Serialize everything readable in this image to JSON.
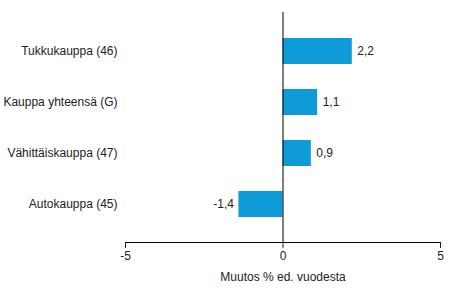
{
  "chart_data": {
    "type": "bar",
    "orientation": "horizontal",
    "categories": [
      "Tukkukauppa (46)",
      "Kauppa yhteensä (G)",
      "Vähittäiskauppa (47)",
      "Autokauppa (45)"
    ],
    "values": [
      2.2,
      1.1,
      0.9,
      -1.4
    ],
    "value_labels": [
      "2,2",
      "1,1",
      "0,9",
      "-1,4"
    ],
    "data_labels": true,
    "color": "#0f9bd7",
    "xlabel": "Muutos % ed. vuodesta",
    "xlim": [
      -5,
      5
    ],
    "xticks": [
      -5,
      0,
      5
    ],
    "grid": false
  }
}
